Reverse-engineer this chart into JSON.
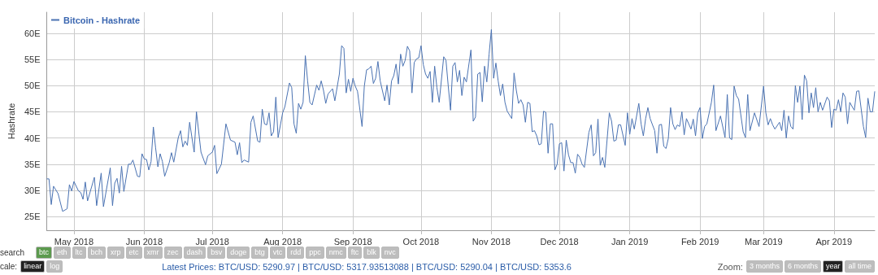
{
  "chart_data": {
    "type": "line",
    "ylabel": "Hashrate",
    "x": [
      "2018-04-19",
      "2018-04-20",
      "2018-04-21",
      "2018-04-22",
      "2018-04-24",
      "2018-04-26",
      "2018-04-28",
      "2018-04-29",
      "2018-04-30",
      "2018-05-01",
      "2018-05-03",
      "2018-05-04",
      "2018-05-05",
      "2018-05-06",
      "2018-05-07",
      "2018-05-10",
      "2018-05-11",
      "2018-05-13",
      "2018-05-14",
      "2018-05-17",
      "2018-05-18",
      "2018-05-19",
      "2018-05-20",
      "2018-05-21",
      "2018-05-22",
      "2018-05-23",
      "2018-05-25",
      "2018-05-26",
      "2018-05-27",
      "2018-05-29",
      "2018-05-30",
      "2018-05-31",
      "2018-06-01",
      "2018-06-02",
      "2018-06-03",
      "2018-06-04",
      "2018-06-05",
      "2018-06-06",
      "2018-06-07",
      "2018-06-08",
      "2018-06-09",
      "2018-06-10",
      "2018-06-12",
      "2018-06-13",
      "2018-06-14",
      "2018-06-16",
      "2018-06-17",
      "2018-06-18",
      "2018-06-19",
      "2018-06-20",
      "2018-06-21",
      "2018-06-22",
      "2018-06-23",
      "2018-06-24",
      "2018-06-26",
      "2018-06-28",
      "2018-06-29",
      "2018-07-01",
      "2018-07-02",
      "2018-07-03",
      "2018-07-05",
      "2018-07-07",
      "2018-07-09",
      "2018-07-11",
      "2018-07-12",
      "2018-07-13",
      "2018-07-14",
      "2018-07-15",
      "2018-07-17",
      "2018-07-18",
      "2018-07-19",
      "2018-07-21",
      "2018-07-22",
      "2018-07-23",
      "2018-07-24",
      "2018-07-25",
      "2018-07-26",
      "2018-07-27",
      "2018-07-28",
      "2018-07-29",
      "2018-07-30",
      "2018-08-01",
      "2018-08-02",
      "2018-08-04",
      "2018-08-05",
      "2018-08-06",
      "2018-08-07",
      "2018-08-08",
      "2018-08-09",
      "2018-08-10",
      "2018-08-11",
      "2018-08-12",
      "2018-08-13",
      "2018-08-14",
      "2018-08-16",
      "2018-08-17",
      "2018-08-18",
      "2018-08-19",
      "2018-08-20",
      "2018-08-21",
      "2018-08-23",
      "2018-08-24",
      "2018-08-26",
      "2018-08-27",
      "2018-08-28",
      "2018-08-29",
      "2018-08-30",
      "2018-08-31",
      "2018-09-01",
      "2018-09-02",
      "2018-09-03",
      "2018-09-05",
      "2018-09-06",
      "2018-09-07",
      "2018-09-08",
      "2018-09-09",
      "2018-09-10",
      "2018-09-11",
      "2018-09-12",
      "2018-09-13",
      "2018-09-15",
      "2018-09-16",
      "2018-09-17",
      "2018-09-18",
      "2018-09-19",
      "2018-09-20",
      "2018-09-21",
      "2018-09-22",
      "2018-09-23",
      "2018-09-24",
      "2018-09-25",
      "2018-09-26",
      "2018-09-27",
      "2018-09-28",
      "2018-09-29",
      "2018-09-30",
      "2018-10-01",
      "2018-10-02",
      "2018-10-03",
      "2018-10-04",
      "2018-10-05",
      "2018-10-06",
      "2018-10-07",
      "2018-10-08",
      "2018-10-09",
      "2018-10-11",
      "2018-10-12",
      "2018-10-13",
      "2018-10-14",
      "2018-10-15",
      "2018-10-16",
      "2018-10-17",
      "2018-10-18",
      "2018-10-19",
      "2018-10-20",
      "2018-10-21",
      "2018-10-23",
      "2018-10-24",
      "2018-10-25",
      "2018-10-26",
      "2018-10-27",
      "2018-10-28",
      "2018-10-29",
      "2018-10-30",
      "2018-10-31",
      "2018-11-01",
      "2018-11-02",
      "2018-11-03",
      "2018-11-04",
      "2018-11-05",
      "2018-11-06",
      "2018-11-07",
      "2018-11-08",
      "2018-11-10",
      "2018-11-11",
      "2018-11-12",
      "2018-11-13",
      "2018-11-14",
      "2018-11-15",
      "2018-11-16",
      "2018-11-17",
      "2018-11-18",
      "2018-11-19",
      "2018-11-20",
      "2018-11-21",
      "2018-11-22",
      "2018-11-23",
      "2018-11-24",
      "2018-11-25",
      "2018-11-26",
      "2018-11-27",
      "2018-11-28",
      "2018-11-29",
      "2018-11-30",
      "2018-12-01",
      "2018-12-02",
      "2018-12-03",
      "2018-12-04",
      "2018-12-05",
      "2018-12-06",
      "2018-12-07",
      "2018-12-08",
      "2018-12-09",
      "2018-12-10",
      "2018-12-11",
      "2018-12-12",
      "2018-12-14",
      "2018-12-15",
      "2018-12-16",
      "2018-12-17",
      "2018-12-18",
      "2018-12-19",
      "2018-12-20",
      "2018-12-21",
      "2018-12-23",
      "2018-12-24",
      "2018-12-25",
      "2018-12-26",
      "2018-12-27",
      "2018-12-28",
      "2018-12-30",
      "2018-12-31",
      "2019-01-01",
      "2019-01-02",
      "2019-01-03",
      "2019-01-05",
      "2019-01-06",
      "2019-01-07",
      "2019-01-08",
      "2019-01-09",
      "2019-01-10",
      "2019-01-12",
      "2019-01-13",
      "2019-01-14",
      "2019-01-15",
      "2019-01-16",
      "2019-01-17",
      "2019-01-18",
      "2019-01-19",
      "2019-01-20",
      "2019-01-21",
      "2019-01-22",
      "2019-01-23",
      "2019-01-24",
      "2019-01-25",
      "2019-01-26",
      "2019-01-28",
      "2019-01-29",
      "2019-01-30",
      "2019-01-31",
      "2019-02-01",
      "2019-02-02",
      "2019-02-03",
      "2019-02-04",
      "2019-02-06",
      "2019-02-07",
      "2019-02-08",
      "2019-02-10",
      "2019-02-12",
      "2019-02-13",
      "2019-02-14",
      "2019-02-15",
      "2019-02-16",
      "2019-02-17",
      "2019-02-18",
      "2019-02-20",
      "2019-02-21",
      "2019-02-22",
      "2019-02-23",
      "2019-02-25",
      "2019-02-27",
      "2019-03-01",
      "2019-03-02",
      "2019-03-03",
      "2019-03-04",
      "2019-03-05",
      "2019-03-06",
      "2019-03-08",
      "2019-03-09",
      "2019-03-10",
      "2019-03-11",
      "2019-03-12",
      "2019-03-13",
      "2019-03-14",
      "2019-03-15",
      "2019-03-16",
      "2019-03-17",
      "2019-03-18",
      "2019-03-19",
      "2019-03-20",
      "2019-03-21",
      "2019-03-22",
      "2019-03-23",
      "2019-03-24",
      "2019-03-25",
      "2019-03-26",
      "2019-03-27",
      "2019-03-29",
      "2019-03-30",
      "2019-03-31",
      "2019-04-01",
      "2019-04-02",
      "2019-04-03",
      "2019-04-04",
      "2019-04-05",
      "2019-04-06",
      "2019-04-07",
      "2019-04-08",
      "2019-04-09",
      "2019-04-10",
      "2019-04-11",
      "2019-04-12",
      "2019-04-14",
      "2019-04-15",
      "2019-04-16",
      "2019-04-17",
      "2019-04-18",
      "2019-04-19"
    ],
    "series": [
      {
        "name": "Bitcoin - Hashrate",
        "color": "#4a72b2",
        "values": [
          32.2,
          32.2,
          27.3,
          30.8,
          29.4,
          26.0,
          26.5,
          31.1,
          29.9,
          31.7,
          29.9,
          29.6,
          28.3,
          31.6,
          28.0,
          32.5,
          27.1,
          33.3,
          26.9,
          34.3,
          27.1,
          31.4,
          32.3,
          29.5,
          34.6,
          29.8,
          35.0,
          35.0,
          35.8,
          32.7,
          32.6,
          37.0,
          36.0,
          35.9,
          33.9,
          35.5,
          42.1,
          38.1,
          34.5,
          37.0,
          35.5,
          32.7,
          35.3,
          37.2,
          35.4,
          40.1,
          41.4,
          38.3,
          39.4,
          38.6,
          43.0,
          40.1,
          37.3,
          45.0,
          37.3,
          34.9,
          36.6,
          37.3,
          38.6,
          33.2,
          35.0,
          42.7,
          39.6,
          39.2,
          36.8,
          39.1,
          35.3,
          35.8,
          35.4,
          43.0,
          44.2,
          39.4,
          39.2,
          45.5,
          42.7,
          42.5,
          44.8,
          40.4,
          41.2,
          47.8,
          40.1,
          44.8,
          46.0,
          50.5,
          49.6,
          42.7,
          40.9,
          46.6,
          45.5,
          46.8,
          55.7,
          50.9,
          46.8,
          46.3,
          50.1,
          49.1,
          50.9,
          49.1,
          46.6,
          48.4,
          49.4,
          47.1,
          52.2,
          57.6,
          57.1,
          48.6,
          51.2,
          48.9,
          51.4,
          49.9,
          48.9,
          42.2,
          49.9,
          53.0,
          53.2,
          53.7,
          50.4,
          51.4,
          54.6,
          50.9,
          47.1,
          50.1,
          46.3,
          50.9,
          51.9,
          54.1,
          50.3,
          56.0,
          53.7,
          54.8,
          57.5,
          56.6,
          48.6,
          54.4,
          55.1,
          55.3,
          57.6,
          54.0,
          52.2,
          51.4,
          52.7,
          46.8,
          53.7,
          49.6,
          46.8,
          55.5,
          54.8,
          49.9,
          45.3,
          53.7,
          54.4,
          50.7,
          52.9,
          48.1,
          51.6,
          50.7,
          56.8,
          43.2,
          44.0,
          52.2,
          52.5,
          46.9,
          53.7,
          50.7,
          56.0,
          60.7,
          51.4,
          54.3,
          50.9,
          48.1,
          50.3,
          46.8,
          45.1,
          43.7,
          52.4,
          49.1,
          46.6,
          47.3,
          46.3,
          43.0,
          46.8,
          46.6,
          41.2,
          41.4,
          40.4,
          38.7,
          38.9,
          45.1,
          44.9,
          37.1,
          42.7,
          42.7,
          33.9,
          35.0,
          38.9,
          39.1,
          33.7,
          39.6,
          36.8,
          35.3,
          35.3,
          33.3,
          36.9,
          36.3,
          35.0,
          34.4,
          41.1,
          42.5,
          36.6,
          37.2,
          43.6,
          34.8,
          36.3,
          34.4,
          44.8,
          43.2,
          39.4,
          39.6,
          42.5,
          42.5,
          38.6,
          44.8,
          40.7,
          43.7,
          41.7,
          46.6,
          42.7,
          40.4,
          43.7,
          45.8,
          43.7,
          41.4,
          37.1,
          42.5,
          42.6,
          38.4,
          38.0,
          39.9,
          45.8,
          42.7,
          41.6,
          42.5,
          42.2,
          45.0,
          40.6,
          43.7,
          41.7,
          43.6,
          40.4,
          44.8,
          45.8,
          39.9,
          42.2,
          42.7,
          46.8,
          50.1,
          41.4,
          44.2,
          40.1,
          48.3,
          40.0,
          39.7,
          49.9,
          48.1,
          47.4,
          41.2,
          40.1,
          48.3,
          41.4,
          44.8,
          42.2,
          49.9,
          44.8,
          42.5,
          43.7,
          42.5,
          41.7,
          43.0,
          41.4,
          45.3,
          40.0,
          44.2,
          42.2,
          41.7,
          50.0,
          46.8,
          49.9,
          43.5,
          52.0,
          50.9,
          44.8,
          48.6,
          45.8,
          49.6,
          45.0,
          46.8,
          45.3,
          47.8,
          47.1,
          42.0,
          45.5,
          45.3,
          47.3,
          45.0,
          48.6,
          47.8,
          42.7,
          46.8,
          46.0,
          45.3,
          48.9,
          49.0,
          42.2,
          40.1,
          47.6,
          45.0,
          45.0,
          48.9
        ]
      }
    ],
    "xlim": [
      "2018-04-19",
      "2019-04-19"
    ],
    "xticks": [
      {
        "value": "2018-05-01",
        "label": "May 2018"
      },
      {
        "value": "2018-06-01",
        "label": "Jun 2018"
      },
      {
        "value": "2018-07-01",
        "label": "Jul 2018"
      },
      {
        "value": "2018-08-01",
        "label": "Aug 2018"
      },
      {
        "value": "2018-09-01",
        "label": "Sep 2018"
      },
      {
        "value": "2018-10-01",
        "label": "Oct 2018"
      },
      {
        "value": "2018-11-01",
        "label": "Nov 2018"
      },
      {
        "value": "2018-12-01",
        "label": "Dec 2018"
      },
      {
        "value": "2019-01-01",
        "label": "Jan 2019"
      },
      {
        "value": "2019-02-01",
        "label": "Feb 2019"
      },
      {
        "value": "2019-03-01",
        "label": "Mar 2019"
      },
      {
        "value": "2019-04-01",
        "label": "Apr 2019"
      }
    ],
    "ylim": [
      22.4,
      64
    ],
    "yticks": [
      {
        "value": 25,
        "label": "25E"
      },
      {
        "value": 30,
        "label": "30E"
      },
      {
        "value": 35,
        "label": "35E"
      },
      {
        "value": 40,
        "label": "40E"
      },
      {
        "value": 45,
        "label": "45E"
      },
      {
        "value": 50,
        "label": "50E"
      },
      {
        "value": 55,
        "label": "55E"
      },
      {
        "value": 60,
        "label": "60E"
      }
    ],
    "grid": true,
    "legend": "top left",
    "marker": "none",
    "line_style": "solid",
    "annotations": [
      "search",
      "btc",
      "eth",
      "ltc",
      "bch",
      "xrp",
      "etc",
      "xmr",
      "zec",
      "dash",
      "bsv",
      "doge",
      "btg",
      "vtc",
      "rdd",
      "ppc",
      "nmc",
      "ftc",
      "blk",
      "nvc",
      "cale:",
      "linear",
      "log",
      "Latest Prices: BTC/USD: 5290.97 | BTC/USD: 5317.93513088 | BTC/USD: 5290.04 | BTC/USD: 5353.6",
      "Zoom:",
      "3 months",
      "6 months",
      "year",
      "all time"
    ]
  }
}
